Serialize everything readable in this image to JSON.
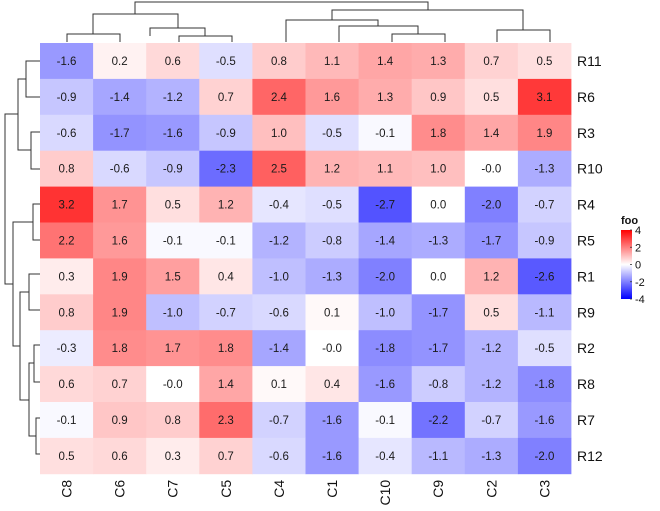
{
  "chart_data": {
    "type": "heatmap",
    "rows": [
      "R11",
      "R6",
      "R3",
      "R10",
      "R4",
      "R5",
      "R1",
      "R9",
      "R2",
      "R8",
      "R7",
      "R12"
    ],
    "columns": [
      "C8",
      "C6",
      "C7",
      "C5",
      "C4",
      "C1",
      "C10",
      "C9",
      "C2",
      "C3"
    ],
    "values": [
      [
        -1.6,
        0.2,
        0.6,
        -0.5,
        0.8,
        1.1,
        1.4,
        1.3,
        0.7,
        0.5
      ],
      [
        -0.9,
        -1.4,
        -1.2,
        0.7,
        2.4,
        1.6,
        1.3,
        0.9,
        0.5,
        3.1
      ],
      [
        -0.6,
        -1.7,
        -1.6,
        -0.9,
        1.0,
        -0.5,
        -0.1,
        1.8,
        1.4,
        1.9
      ],
      [
        0.8,
        -0.6,
        -0.9,
        -2.3,
        2.5,
        1.2,
        1.1,
        1.0,
        -0.0,
        -1.3
      ],
      [
        3.2,
        1.7,
        0.5,
        1.2,
        -0.4,
        -0.5,
        -2.7,
        0.0,
        -2.0,
        -0.7
      ],
      [
        2.2,
        1.6,
        -0.1,
        -0.1,
        -1.2,
        -0.8,
        -1.4,
        -1.3,
        -1.7,
        -0.9
      ],
      [
        0.3,
        1.9,
        1.5,
        0.4,
        -1.0,
        -1.3,
        -2.0,
        0.0,
        1.2,
        -2.6
      ],
      [
        0.8,
        1.9,
        -1.0,
        -0.7,
        -0.6,
        0.1,
        -1.0,
        -1.7,
        0.5,
        -1.1
      ],
      [
        -0.3,
        1.8,
        1.7,
        1.8,
        -1.4,
        -0.0,
        -1.8,
        -1.7,
        -1.2,
        -0.5
      ],
      [
        0.6,
        0.7,
        -0.0,
        1.4,
        0.1,
        0.4,
        -1.6,
        -0.8,
        -1.2,
        -1.8
      ],
      [
        -0.1,
        0.9,
        0.8,
        2.3,
        -0.7,
        -1.6,
        -0.1,
        -2.2,
        -0.7,
        -1.6
      ],
      [
        0.5,
        0.6,
        0.3,
        0.7,
        -0.6,
        -1.6,
        -0.4,
        -1.1,
        -1.3,
        -2.0
      ]
    ],
    "cell_labels": [
      [
        "-1.6",
        "0.2",
        "0.6",
        "-0.5",
        "0.8",
        "1.1",
        "1.4",
        "1.3",
        "0.7",
        "0.5"
      ],
      [
        "-0.9",
        "-1.4",
        "-1.2",
        "0.7",
        "2.4",
        "1.6",
        "1.3",
        "0.9",
        "0.5",
        "3.1"
      ],
      [
        "-0.6",
        "-1.7",
        "-1.6",
        "-0.9",
        "1.0",
        "-0.5",
        "-0.1",
        "1.8",
        "1.4",
        "1.9"
      ],
      [
        "0.8",
        "-0.6",
        "-0.9",
        "-2.3",
        "2.5",
        "1.2",
        "1.1",
        "1.0",
        "-0.0",
        "-1.3"
      ],
      [
        "3.2",
        "1.7",
        "0.5",
        "1.2",
        "-0.4",
        "-0.5",
        "-2.7",
        "0.0",
        "-2.0",
        "-0.7"
      ],
      [
        "2.2",
        "1.6",
        "-0.1",
        "-0.1",
        "-1.2",
        "-0.8",
        "-1.4",
        "-1.3",
        "-1.7",
        "-0.9"
      ],
      [
        "0.3",
        "1.9",
        "1.5",
        "0.4",
        "-1.0",
        "-1.3",
        "-2.0",
        "0.0",
        "1.2",
        "-2.6"
      ],
      [
        "0.8",
        "1.9",
        "-1.0",
        "-0.7",
        "-0.6",
        "0.1",
        "-1.0",
        "-1.7",
        "0.5",
        "-1.1"
      ],
      [
        "-0.3",
        "1.8",
        "1.7",
        "1.8",
        "-1.4",
        "-0.0",
        "-1.8",
        "-1.7",
        "-1.2",
        "-0.5"
      ],
      [
        "0.6",
        "0.7",
        "-0.0",
        "1.4",
        "0.1",
        "0.4",
        "-1.6",
        "-0.8",
        "-1.2",
        "-1.8"
      ],
      [
        "-0.1",
        "0.9",
        "0.8",
        "2.3",
        "-0.7",
        "-1.6",
        "-0.1",
        "-2.2",
        "-0.7",
        "-1.6"
      ],
      [
        "0.5",
        "0.6",
        "0.3",
        "0.7",
        "-0.6",
        "-1.6",
        "-0.4",
        "-1.1",
        "-1.3",
        "-2.0"
      ]
    ],
    "color_scale": {
      "domain": [
        -4,
        0,
        4
      ],
      "colors": [
        "#0000ff",
        "#ffffff",
        "#ff0000"
      ]
    },
    "legend": {
      "title": "foo",
      "ticks": [
        4,
        2,
        0,
        -2,
        -4
      ],
      "tick_labels": [
        "4",
        "2",
        "0",
        "-2",
        "-4"
      ],
      "position": "right"
    },
    "row_dendrogram": "left",
    "column_dendrogram": "top",
    "row_labels_position": "right",
    "column_labels_position": "bottom",
    "grid": false
  }
}
